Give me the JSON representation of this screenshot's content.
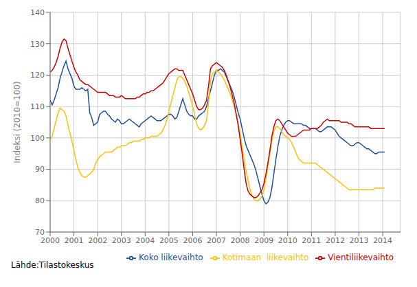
{
  "chart_data": {
    "type": "line",
    "title": "",
    "y_label": "Indeksi (2010=100)",
    "annotation": "Lähde:Tilastokeskus",
    "xlim": [
      2000,
      2014.75
    ],
    "xticks": [
      2000,
      2001,
      2002,
      2003,
      2004,
      2005,
      2006,
      2007,
      2008,
      2009,
      2010,
      2011,
      2012,
      2013,
      2014
    ],
    "ylim": [
      70,
      140
    ],
    "yticks": [
      70,
      80,
      90,
      100,
      110,
      120,
      130,
      140
    ],
    "grid": true,
    "legend": "bottom",
    "x": [
      2000,
      2000.0833,
      2000.1667,
      2000.25,
      2000.3333,
      2000.4167,
      2000.5,
      2000.5833,
      2000.6667,
      2000.75,
      2000.8333,
      2000.9167,
      2001,
      2001.0833,
      2001.1667,
      2001.25,
      2001.3333,
      2001.4167,
      2001.5,
      2001.5833,
      2001.6667,
      2001.75,
      2001.8333,
      2001.9167,
      2002,
      2002.0833,
      2002.1667,
      2002.25,
      2002.3333,
      2002.4167,
      2002.5,
      2002.5833,
      2002.6667,
      2002.75,
      2002.8333,
      2002.9167,
      2003,
      2003.0833,
      2003.1667,
      2003.25,
      2003.3333,
      2003.4167,
      2003.5,
      2003.5833,
      2003.6667,
      2003.75,
      2003.8333,
      2003.9167,
      2004,
      2004.0833,
      2004.1667,
      2004.25,
      2004.3333,
      2004.4167,
      2004.5,
      2004.5833,
      2004.6667,
      2004.75,
      2004.8333,
      2004.9167,
      2005,
      2005.0833,
      2005.1667,
      2005.25,
      2005.3333,
      2005.4167,
      2005.5,
      2005.5833,
      2005.6667,
      2005.75,
      2005.8333,
      2005.9167,
      2006,
      2006.0833,
      2006.1667,
      2006.25,
      2006.3333,
      2006.4167,
      2006.5,
      2006.5833,
      2006.6667,
      2006.75,
      2006.8333,
      2006.9167,
      2007,
      2007.0833,
      2007.1667,
      2007.25,
      2007.3333,
      2007.4167,
      2007.5,
      2007.5833,
      2007.6667,
      2007.75,
      2007.8333,
      2007.9167,
      2008,
      2008.0833,
      2008.1667,
      2008.25,
      2008.3333,
      2008.4167,
      2008.5,
      2008.5833,
      2008.6667,
      2008.75,
      2008.8333,
      2008.9167,
      2009,
      2009.0833,
      2009.1667,
      2009.25,
      2009.3333,
      2009.4167,
      2009.5,
      2009.5833,
      2009.6667,
      2009.75,
      2009.8333,
      2009.9167,
      2010,
      2010.0833,
      2010.1667,
      2010.25,
      2010.3333,
      2010.4167,
      2010.5,
      2010.5833,
      2010.6667,
      2010.75,
      2010.8333,
      2010.9167,
      2011,
      2011.0833,
      2011.1667,
      2011.25,
      2011.3333,
      2011.4167,
      2011.5,
      2011.5833,
      2011.6667,
      2011.75,
      2011.8333,
      2011.9167,
      2012,
      2012.0833,
      2012.1667,
      2012.25,
      2012.3333,
      2012.4167,
      2012.5,
      2012.5833,
      2012.6667,
      2012.75,
      2012.8333,
      2012.9167,
      2013,
      2013.0833,
      2013.1667,
      2013.25,
      2013.3333,
      2013.4167,
      2013.5,
      2013.5833,
      2013.6667,
      2013.75,
      2013.8333,
      2013.9167,
      2014,
      2014.0833
    ],
    "series": [
      {
        "name": "Koko liikevaihto",
        "color": "#1f4e9c",
        "values": [
          112.0,
          110.5,
          112.0,
          114.0,
          116.0,
          119.0,
          121.0,
          123.0,
          124.5,
          122.0,
          120.5,
          119.0,
          116.5,
          115.5,
          115.5,
          115.5,
          116.0,
          115.5,
          115.0,
          115.5,
          108.0,
          106.5,
          104.0,
          104.5,
          105.0,
          107.5,
          108.0,
          108.5,
          108.5,
          107.5,
          107.0,
          106.0,
          105.5,
          105.0,
          106.0,
          105.5,
          104.5,
          104.5,
          105.0,
          105.5,
          106.0,
          105.5,
          105.0,
          104.5,
          104.0,
          103.5,
          104.5,
          105.0,
          105.5,
          106.0,
          106.5,
          107.0,
          106.5,
          106.0,
          105.5,
          105.5,
          105.5,
          106.0,
          106.5,
          107.0,
          107.5,
          107.5,
          107.0,
          106.0,
          106.5,
          108.5,
          110.5,
          112.5,
          110.5,
          108.5,
          107.5,
          107.0,
          107.0,
          106.0,
          106.0,
          107.0,
          107.5,
          108.0,
          108.5,
          110.0,
          112.5,
          115.0,
          117.5,
          120.0,
          121.5,
          121.5,
          122.0,
          121.5,
          121.0,
          119.5,
          118.0,
          116.5,
          115.0,
          113.0,
          110.5,
          108.0,
          106.0,
          103.0,
          100.0,
          97.5,
          96.0,
          94.5,
          93.0,
          91.5,
          89.5,
          87.0,
          84.5,
          82.0,
          80.0,
          79.0,
          79.5,
          81.0,
          84.0,
          88.5,
          93.0,
          97.0,
          100.5,
          102.5,
          104.0,
          105.0,
          105.5,
          105.5,
          105.0,
          104.5,
          104.5,
          104.5,
          104.5,
          104.5,
          104.0,
          104.0,
          103.5,
          103.0,
          103.0,
          103.0,
          103.0,
          102.5,
          102.0,
          102.0,
          102.5,
          103.0,
          103.5,
          103.5,
          103.5,
          103.0,
          102.5,
          101.5,
          100.5,
          100.0,
          99.5,
          99.0,
          98.5,
          98.0,
          97.5,
          97.5,
          98.0,
          98.5,
          98.5,
          98.0,
          97.5,
          97.0,
          96.5,
          96.5,
          96.0,
          95.5,
          95.0,
          95.0,
          95.5,
          95.5,
          95.5,
          95.5
        ]
      },
      {
        "name": "Kotimaan  liikevaihto",
        "color": "#ffc000",
        "values": [
          99.5,
          100.5,
          103.0,
          105.5,
          108.0,
          109.5,
          109.0,
          108.5,
          107.0,
          104.0,
          101.5,
          99.0,
          96.0,
          93.0,
          90.5,
          89.0,
          88.0,
          87.5,
          87.5,
          88.0,
          88.5,
          89.0,
          90.0,
          92.0,
          93.0,
          94.0,
          94.5,
          95.0,
          95.5,
          95.5,
          95.5,
          95.5,
          96.0,
          96.5,
          97.0,
          97.0,
          97.5,
          97.5,
          97.5,
          98.0,
          98.5,
          98.5,
          99.0,
          99.0,
          99.0,
          99.0,
          99.5,
          99.5,
          100.0,
          100.0,
          100.0,
          100.5,
          100.5,
          100.5,
          100.5,
          101.0,
          101.5,
          102.5,
          104.0,
          106.0,
          108.5,
          111.0,
          113.5,
          116.0,
          118.5,
          119.5,
          119.5,
          119.0,
          118.0,
          116.5,
          114.5,
          112.5,
          110.0,
          107.5,
          104.5,
          103.0,
          102.5,
          103.0,
          104.0,
          105.5,
          111.0,
          118.0,
          120.5,
          121.0,
          121.5,
          121.0,
          120.5,
          119.5,
          118.5,
          117.0,
          115.5,
          114.0,
          112.0,
          110.0,
          107.5,
          104.5,
          101.0,
          97.0,
          93.0,
          89.5,
          86.5,
          83.5,
          81.5,
          80.5,
          80.0,
          80.0,
          80.5,
          81.5,
          83.5,
          87.0,
          91.0,
          95.0,
          99.0,
          102.0,
          103.5,
          103.5,
          103.0,
          102.0,
          101.0,
          100.5,
          100.0,
          99.5,
          98.5,
          97.0,
          95.5,
          94.0,
          93.0,
          92.5,
          92.0,
          92.0,
          92.0,
          92.0,
          92.0,
          92.0,
          92.0,
          91.5,
          91.0,
          90.5,
          90.0,
          89.5,
          89.0,
          88.5,
          88.0,
          87.5,
          87.0,
          86.5,
          86.0,
          85.5,
          85.0,
          84.5,
          84.0,
          83.5,
          83.5,
          83.5,
          83.5,
          83.5,
          83.5,
          83.5,
          83.5,
          83.5,
          83.5,
          83.5,
          83.5,
          83.5,
          84.0,
          84.0,
          84.0,
          84.0,
          84.0,
          84.0
        ]
      },
      {
        "name": "Vientiliikevaihto",
        "color": "#cc0000",
        "values": [
          121.0,
          121.5,
          122.5,
          124.0,
          126.0,
          128.5,
          130.5,
          131.5,
          131.0,
          128.5,
          126.5,
          124.5,
          122.5,
          121.0,
          120.0,
          118.5,
          118.0,
          117.5,
          117.0,
          117.0,
          116.5,
          116.0,
          115.5,
          115.0,
          114.5,
          114.5,
          114.5,
          114.5,
          114.5,
          114.0,
          113.5,
          113.5,
          113.5,
          113.0,
          113.0,
          113.0,
          113.5,
          113.0,
          112.5,
          112.5,
          112.5,
          112.5,
          112.5,
          112.5,
          113.0,
          113.0,
          113.5,
          114.0,
          114.0,
          114.5,
          114.5,
          115.0,
          115.0,
          115.5,
          116.0,
          116.5,
          117.0,
          117.5,
          118.5,
          119.5,
          120.5,
          121.0,
          121.5,
          122.0,
          122.0,
          121.5,
          121.5,
          121.5,
          120.0,
          118.5,
          117.0,
          115.5,
          114.0,
          112.0,
          110.0,
          109.0,
          109.0,
          109.5,
          110.5,
          112.0,
          116.5,
          122.0,
          123.0,
          123.5,
          124.0,
          123.5,
          123.0,
          122.5,
          121.5,
          120.0,
          118.0,
          116.0,
          113.5,
          111.0,
          107.5,
          104.0,
          99.5,
          95.0,
          90.0,
          85.5,
          83.0,
          82.0,
          81.5,
          81.0,
          81.0,
          81.5,
          82.5,
          83.5,
          85.5,
          88.5,
          92.0,
          96.0,
          100.5,
          103.5,
          105.5,
          106.0,
          105.5,
          104.5,
          103.5,
          102.5,
          101.5,
          101.0,
          100.5,
          100.5,
          100.5,
          101.0,
          101.5,
          102.0,
          102.5,
          102.5,
          102.5,
          102.5,
          103.0,
          103.0,
          103.0,
          103.0,
          103.5,
          104.0,
          105.0,
          105.5,
          106.0,
          105.5,
          105.5,
          105.5,
          105.5,
          105.5,
          105.5,
          105.0,
          105.0,
          105.0,
          105.0,
          104.5,
          104.5,
          104.0,
          103.5,
          103.5,
          103.5,
          103.5,
          103.5,
          103.5,
          103.5,
          103.5,
          103.0,
          103.0,
          103.0,
          103.0,
          103.0,
          103.0,
          103.0,
          103.0
        ]
      }
    ]
  }
}
